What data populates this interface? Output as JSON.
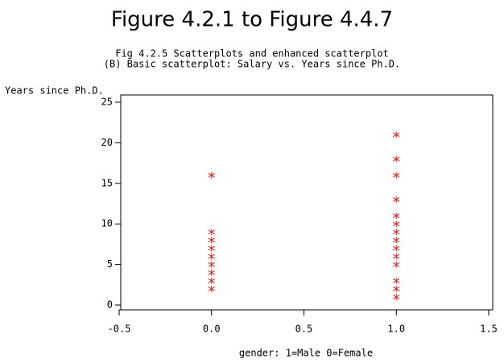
{
  "chart_data": {
    "type": "scatter",
    "title": "Figure 4.2.1 to Figure 4.4.7",
    "subtitle": [
      "Fig 4.2.5 Scatterplots and enhanced scatterplot",
      "(B) Basic scatterplot: Salary vs. Years since Ph.D."
    ],
    "y_label": "Years since Ph.D.",
    "x_label": "gender: 1=Male 0=Female",
    "color": "#e0201c",
    "x": [
      0,
      0,
      0,
      0,
      0,
      0,
      0,
      0,
      0,
      1,
      1,
      1,
      1,
      1,
      1,
      1,
      1,
      1,
      1,
      1,
      1,
      1,
      1
    ],
    "y": [
      16,
      9,
      8,
      7,
      6,
      5,
      4,
      3,
      2,
      21,
      18,
      16,
      13,
      11,
      10,
      9,
      8,
      7,
      6,
      5,
      3,
      2,
      1
    ],
    "xlim": [
      -0.5,
      1.5
    ],
    "xticks": [
      -0.5,
      {
        "value": 0,
        "label": "0.0"
      },
      0.5,
      {
        "value": 1,
        "label": "1.0"
      },
      1.5
    ],
    "ylim": [
      0,
      25
    ],
    "yticks": [
      0,
      5,
      10,
      15,
      20,
      25
    ]
  }
}
